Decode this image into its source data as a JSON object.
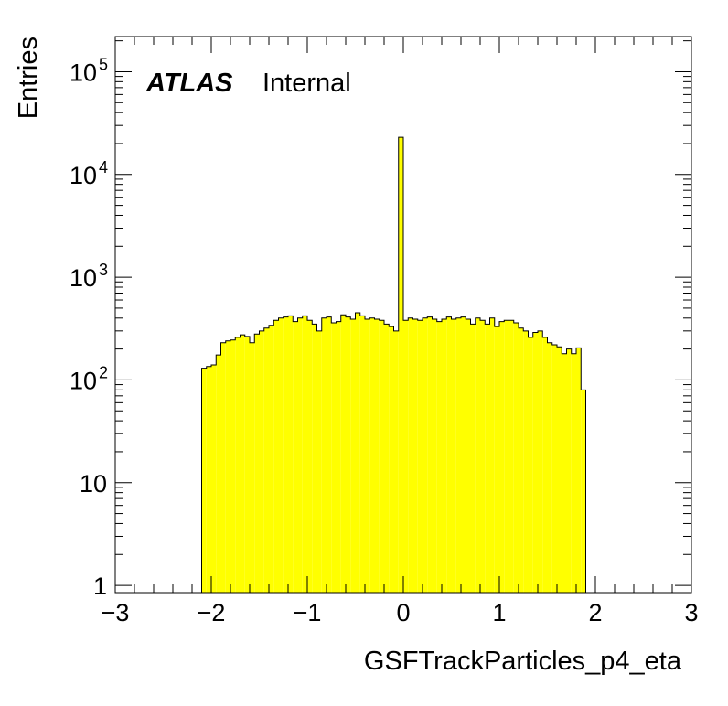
{
  "chart_data": {
    "type": "histogram",
    "title": "",
    "xlabel": "GSFTrackParticles_p4_eta",
    "ylabel": "Entries",
    "xlim": [
      -3,
      3
    ],
    "ylim": [
      0.85,
      220000
    ],
    "yscale": "log",
    "grid": false,
    "fill_color": "#ffff00",
    "line_color": "#000000",
    "annotation": {
      "bold": "ATLAS",
      "normal": "Internal"
    },
    "x_ticks": [
      {
        "value": -3,
        "label": "−3"
      },
      {
        "value": -2,
        "label": "−2"
      },
      {
        "value": -1,
        "label": "−1"
      },
      {
        "value": 0,
        "label": "0"
      },
      {
        "value": 1,
        "label": "1"
      },
      {
        "value": 2,
        "label": "2"
      },
      {
        "value": 3,
        "label": "3"
      }
    ],
    "y_ticks": [
      {
        "value": 1,
        "base": "1",
        "exp": ""
      },
      {
        "value": 10,
        "base": "10",
        "exp": ""
      },
      {
        "value": 100,
        "base": "10",
        "exp": "2"
      },
      {
        "value": 1000,
        "base": "10",
        "exp": "3"
      },
      {
        "value": 10000,
        "base": "10",
        "exp": "4"
      },
      {
        "value": 100000,
        "base": "10",
        "exp": "5"
      }
    ],
    "bin_edges_start": -2.1,
    "bin_width": 0.05,
    "counts": [
      130,
      135,
      140,
      175,
      230,
      240,
      245,
      260,
      275,
      265,
      230,
      280,
      300,
      320,
      340,
      380,
      400,
      410,
      420,
      370,
      400,
      420,
      380,
      350,
      300,
      400,
      410,
      360,
      370,
      430,
      410,
      390,
      450,
      420,
      390,
      400,
      390,
      380,
      350,
      330,
      300,
      23000,
      380,
      400,
      390,
      380,
      400,
      410,
      390,
      370,
      390,
      410,
      390,
      400,
      410,
      390,
      350,
      400,
      380,
      350,
      400,
      330,
      370,
      380,
      380,
      360,
      320,
      300,
      260,
      290,
      300,
      260,
      230,
      220,
      210,
      180,
      200,
      180,
      205,
      80
    ]
  }
}
